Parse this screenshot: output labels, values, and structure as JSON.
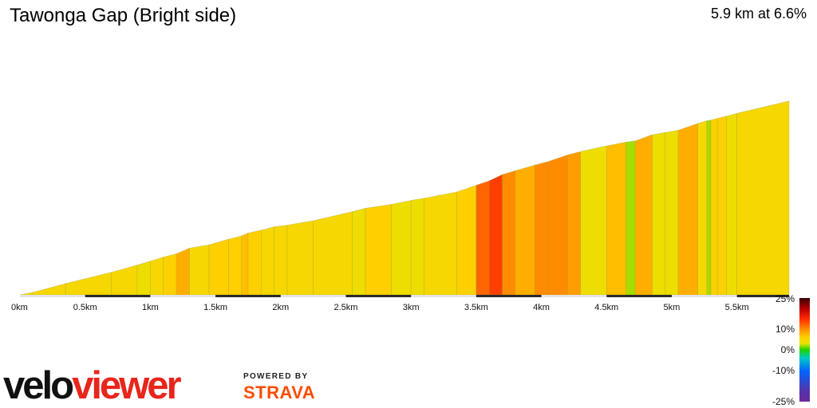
{
  "header": {
    "title": "Tawonga Gap (Bright side)",
    "summary": "5.9 km at 6.6%"
  },
  "chart_data": {
    "type": "area",
    "title": "Tawonga Gap (Bright side)",
    "subtitle": "5.9 km at 6.6%",
    "xlabel": "",
    "ylabel": "",
    "xlim": [
      0,
      5.9
    ],
    "x_ticks": [
      "0km",
      "0.5km",
      "1km",
      "1.5km",
      "2km",
      "2.5km",
      "3km",
      "3.5km",
      "4km",
      "4.5km",
      "5km",
      "5.5km"
    ],
    "x_tick_values": [
      0,
      0.5,
      1,
      1.5,
      2,
      2.5,
      3,
      3.5,
      4,
      4.5,
      5,
      5.5
    ],
    "grid": false,
    "series": [
      {
        "x": [
          0,
          0.1,
          0.35,
          0.7,
          0.9,
          1.0,
          1.1,
          1.2,
          1.3,
          1.45,
          1.6,
          1.7,
          1.75,
          1.85,
          1.95,
          2.05,
          2.25,
          2.55,
          2.65,
          2.85,
          3.0,
          3.1,
          3.35,
          3.5,
          3.6,
          3.7,
          3.8,
          3.95,
          4.05,
          4.2,
          4.3,
          4.5,
          4.65,
          4.72,
          4.85,
          4.95,
          5.05,
          5.2,
          5.27,
          5.3,
          5.35,
          5.42,
          5.5,
          5.9
        ],
        "y": [
          0,
          4.5,
          20,
          40,
          53,
          60,
          67,
          73,
          83,
          89,
          99,
          105,
          110,
          115,
          121,
          124,
          132,
          148,
          154,
          161,
          168,
          172,
          183,
          195,
          203,
          214,
          221,
          231,
          237,
          249,
          255,
          265,
          272,
          274,
          285,
          289,
          293,
          305,
          310,
          311,
          314,
          318,
          323,
          345
        ]
      }
    ],
    "segment_grades_pct": [
      4,
      5,
      5,
      5,
      4,
      5,
      6,
      8,
      5,
      6,
      6,
      7,
      6,
      5,
      5,
      5,
      5,
      4,
      6,
      4,
      4,
      5,
      6,
      12,
      14,
      10,
      8,
      10,
      10,
      9,
      4,
      7,
      2,
      8,
      4,
      4,
      8,
      5,
      2,
      6,
      6,
      4,
      5
    ],
    "color_scale": {
      "labels": [
        "25%",
        "10%",
        "0%",
        "-10%",
        "-25%"
      ],
      "values": [
        25,
        10,
        0,
        -10,
        -25
      ],
      "colors": {
        "25": "#3a0000",
        "20": "#b30000",
        "15": "#ff2a00",
        "10": "#ff8c00",
        "6": "#ffd000",
        "3": "#e6e400",
        "0": "#1fd200",
        "-4": "#00c8c8",
        "-10": "#0066ff",
        "-20": "#5533aa",
        "-25": "#6a2a9a"
      }
    }
  },
  "branding": {
    "logo_part1": "velo",
    "logo_part2": "viewer",
    "powered_by": "POWERED BY",
    "strava": "STRAVA"
  }
}
